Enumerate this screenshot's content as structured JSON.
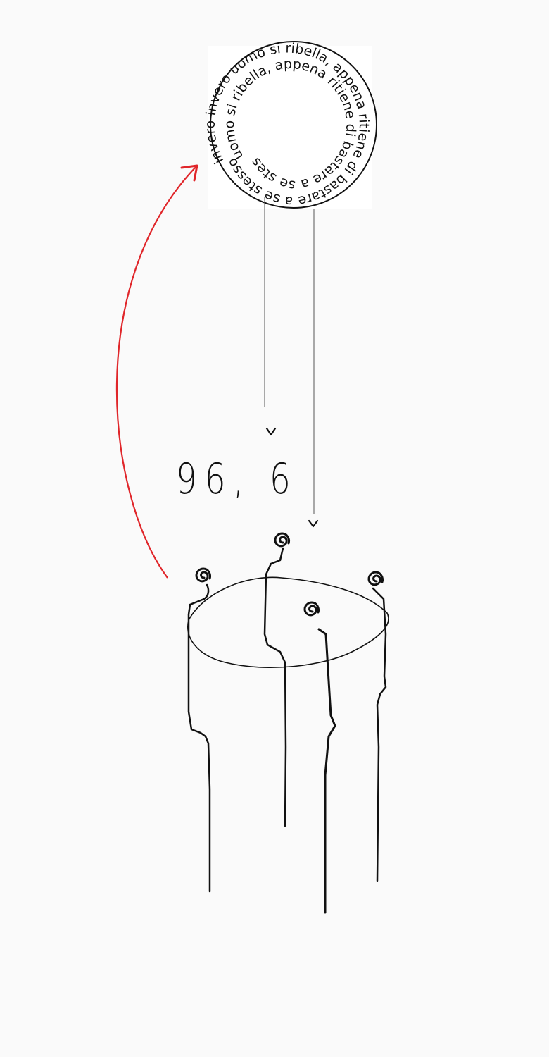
{
  "spiral_badge": {
    "outer_text": "invero invero uomo si ribella, appena ritiene di bastare a se stesso",
    "inner_text": "uomo si ribella, appena ritiene di bastare a se stesso"
  },
  "readout": {
    "value": "96, 6"
  },
  "colors": {
    "background": "#fafafa",
    "ink": "#111111",
    "arrow": "#e0262a"
  },
  "icons": {
    "chevron": "chevron-down-icon",
    "spiral": "spiral-icon",
    "arrow": "curved-arrow-icon"
  }
}
